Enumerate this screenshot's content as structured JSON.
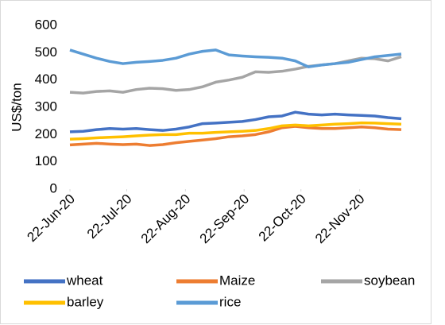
{
  "chart_data": {
    "type": "line",
    "y_label": "US$/ton",
    "x": [
      "2020-06-22",
      "2020-06-29",
      "2020-07-06",
      "2020-07-13",
      "2020-07-20",
      "2020-07-27",
      "2020-08-03",
      "2020-08-10",
      "2020-08-17",
      "2020-08-24",
      "2020-08-31",
      "2020-09-07",
      "2020-09-14",
      "2020-09-21",
      "2020-09-28",
      "2020-10-05",
      "2020-10-12",
      "2020-10-19",
      "2020-10-26",
      "2020-11-02",
      "2020-11-09",
      "2020-11-16",
      "2020-11-23",
      "2020-11-30",
      "2020-12-07",
      "2020-12-14"
    ],
    "series": [
      {
        "name": "wheat",
        "color": "#4472c4",
        "values": [
          210,
          212,
          218,
          222,
          220,
          222,
          218,
          215,
          220,
          228,
          240,
          242,
          245,
          248,
          255,
          265,
          268,
          282,
          275,
          272,
          275,
          272,
          270,
          268,
          262,
          258
        ]
      },
      {
        "name": "Maize",
        "color": "#ed7d31",
        "values": [
          162,
          165,
          168,
          165,
          163,
          165,
          160,
          163,
          170,
          175,
          180,
          185,
          192,
          195,
          200,
          210,
          225,
          230,
          225,
          222,
          222,
          225,
          228,
          225,
          220,
          218
        ]
      },
      {
        "name": "soybean",
        "color": "#a5a5a5",
        "values": [
          355,
          352,
          358,
          360,
          355,
          365,
          370,
          368,
          362,
          365,
          375,
          392,
          400,
          410,
          430,
          428,
          432,
          440,
          450,
          455,
          460,
          470,
          480,
          478,
          470,
          485
        ]
      },
      {
        "name": "barley",
        "color": "#ffc000",
        "values": [
          183,
          185,
          188,
          190,
          192,
          195,
          198,
          200,
          200,
          205,
          205,
          208,
          210,
          212,
          215,
          222,
          232,
          235,
          232,
          235,
          238,
          240,
          243,
          242,
          240,
          238
        ]
      },
      {
        "name": "rice",
        "color": "#5b9bd5",
        "values": [
          510,
          495,
          480,
          468,
          460,
          465,
          468,
          472,
          480,
          495,
          505,
          510,
          492,
          488,
          485,
          483,
          480,
          470,
          448,
          455,
          460,
          465,
          475,
          485,
          490,
          495
        ]
      }
    ],
    "xlim": [
      "2020-06-22",
      "2020-12-14"
    ],
    "xticks": [
      {
        "value": "2020-06-22",
        "label": "22-Jun-20"
      },
      {
        "value": "2020-07-22",
        "label": "22-Jul-20"
      },
      {
        "value": "2020-08-22",
        "label": "22-Aug-20"
      },
      {
        "value": "2020-09-22",
        "label": "22-Sep-20"
      },
      {
        "value": "2020-10-22",
        "label": "22-Oct-20"
      },
      {
        "value": "2020-11-22",
        "label": "22-Nov-20"
      }
    ],
    "ylim": [
      0,
      600
    ],
    "yticks": [
      0,
      100,
      200,
      300,
      400,
      500,
      600
    ],
    "grid": false,
    "legend": "bottom"
  }
}
